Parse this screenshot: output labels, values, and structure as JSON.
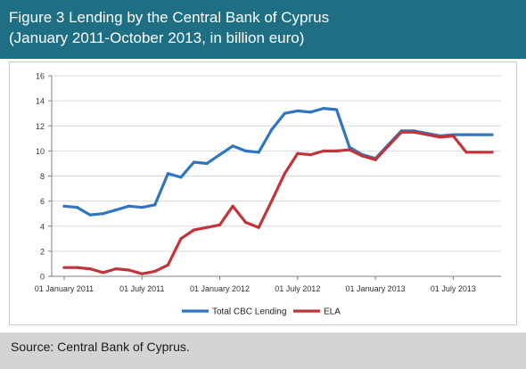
{
  "header": {
    "title": "Figure 3 Lending by the Central Bank of Cyprus",
    "subtitle": "(January 2011-October 2013, in billion euro)"
  },
  "footer": {
    "source": "Source: Central Bank of Cyprus."
  },
  "colors": {
    "header_bg": "#1e6e84",
    "footer_bg": "#d4d4d4",
    "total": "#2f75c0",
    "ela": "#c0343a",
    "grid": "#d9d9d9"
  },
  "chart_data": {
    "type": "line",
    "title": "",
    "xlabel": "",
    "ylabel": "",
    "ylim": [
      0,
      16
    ],
    "yticks": [
      0,
      2,
      4,
      6,
      8,
      10,
      12,
      14,
      16
    ],
    "grid": true,
    "legend_position": "bottom",
    "x": [
      "Jan 2011",
      "Feb 2011",
      "Mar 2011",
      "Apr 2011",
      "May 2011",
      "Jun 2011",
      "Jul 2011",
      "Aug 2011",
      "Sep 2011",
      "Oct 2011",
      "Nov 2011",
      "Dec 2011",
      "Jan 2012",
      "Feb 2012",
      "Mar 2012",
      "Apr 2012",
      "May 2012",
      "Jun 2012",
      "Jul 2012",
      "Aug 2012",
      "Sep 2012",
      "Oct 2012",
      "Nov 2012",
      "Dec 2012",
      "Jan 2013",
      "Feb 2013",
      "Mar 2013",
      "Apr 2013",
      "May 2013",
      "Jun 2013",
      "Jul 2013",
      "Aug 2013",
      "Sep 2013",
      "Oct 2013"
    ],
    "x_ticks": [
      {
        "index": 0,
        "label": "01 January 2011"
      },
      {
        "index": 6,
        "label": "01 July 2011"
      },
      {
        "index": 12,
        "label": "01 January 2012"
      },
      {
        "index": 18,
        "label": "01 July 2012"
      },
      {
        "index": 24,
        "label": "01 January 2013"
      },
      {
        "index": 30,
        "label": "01 July 2013"
      }
    ],
    "series": [
      {
        "name": "Total CBC Lending",
        "values": [
          5.6,
          5.5,
          4.9,
          5.0,
          5.3,
          5.6,
          5.5,
          5.7,
          8.2,
          7.9,
          9.1,
          9.0,
          9.7,
          10.4,
          10.0,
          9.9,
          11.7,
          13.0,
          13.2,
          13.1,
          13.4,
          13.3,
          10.3,
          9.7,
          9.4,
          10.5,
          11.6,
          11.6,
          11.4,
          11.2,
          11.3,
          11.3,
          11.3,
          11.3
        ]
      },
      {
        "name": "ELA",
        "values": [
          0.7,
          0.7,
          0.6,
          0.3,
          0.6,
          0.5,
          0.2,
          0.4,
          0.9,
          3.0,
          3.7,
          3.9,
          4.1,
          5.6,
          4.3,
          3.9,
          6.0,
          8.2,
          9.8,
          9.7,
          10.0,
          10.0,
          10.1,
          9.6,
          9.3,
          10.4,
          11.5,
          11.5,
          11.3,
          11.1,
          11.2,
          9.9,
          9.9,
          9.9
        ]
      }
    ]
  }
}
